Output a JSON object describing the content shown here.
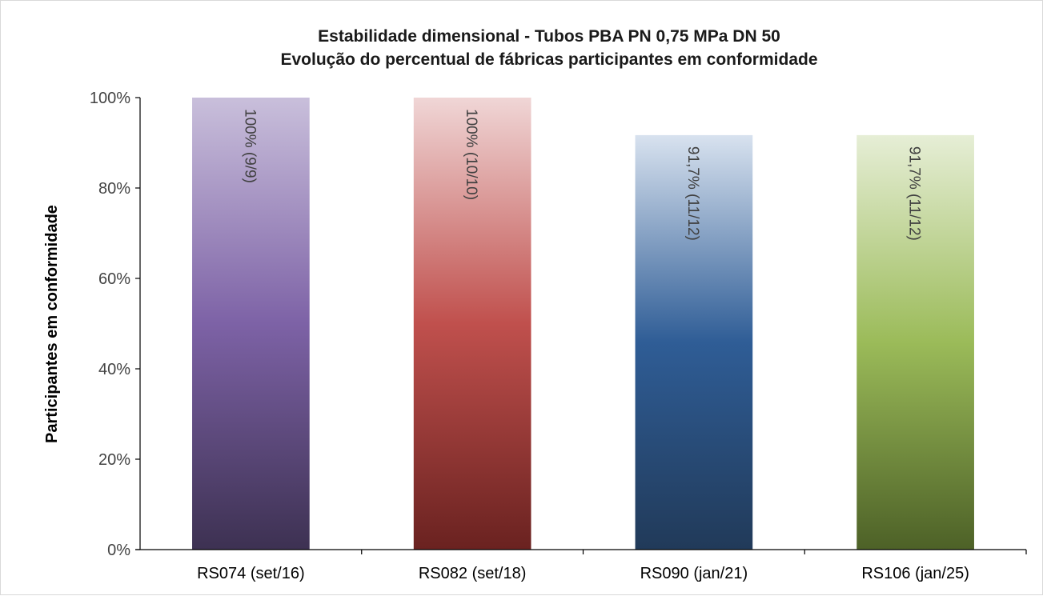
{
  "chart_data": {
    "type": "bar",
    "title": "Estabilidade dimensional - Tubos PBA PN 0,75 MPa DN 50",
    "subtitle": "Evolução do percentual de fábricas participantes em conformidade",
    "xlabel": "",
    "ylabel": "Participantes em conformidade",
    "ylim": [
      0,
      100
    ],
    "yticks": [
      "0%",
      "20%",
      "40%",
      "60%",
      "80%",
      "100%"
    ],
    "categories": [
      "RS074 (set/16)",
      "RS082 (set/18)",
      "RS090 (jan/21)",
      "RS106 (jan/25)"
    ],
    "values": [
      100,
      100,
      91.7,
      91.7
    ],
    "data_labels": [
      "100% (9/9)",
      "100% (10/10)",
      "91,7% (11/12)",
      "91,7% (11/12)"
    ],
    "bar_colors": [
      [
        "#c9bfdb",
        "#7d62a6",
        "#3d3152"
      ],
      [
        "#f0d6d6",
        "#c0504d",
        "#6a2220"
      ],
      [
        "#d8e2ef",
        "#2f5d96",
        "#213a59"
      ],
      [
        "#e6eed6",
        "#9bbb59",
        "#4d6127"
      ]
    ],
    "grid": false,
    "legend": "none"
  }
}
